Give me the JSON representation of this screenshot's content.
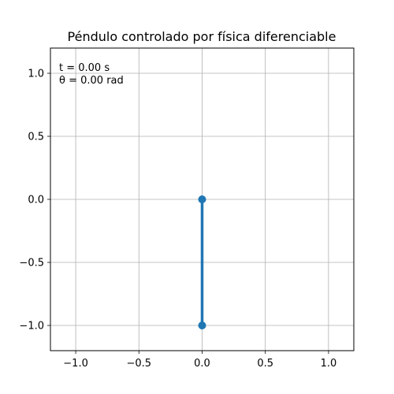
{
  "chart_data": {
    "type": "line",
    "title": "Péndulo controlado por física diferenciable",
    "xlim": [
      -1.2,
      1.2
    ],
    "ylim": [
      -1.2,
      1.2
    ],
    "xticks": [
      -1.0,
      -0.5,
      0.0,
      0.5,
      1.0
    ],
    "xtick_labels": [
      "−1.0",
      "−0.5",
      "0.0",
      "0.5",
      "1.0"
    ],
    "yticks": [
      -1.0,
      -0.5,
      0.0,
      0.5,
      1.0
    ],
    "ytick_labels": [
      "−1.0",
      "−0.5",
      "0.0",
      "0.5",
      "1.0"
    ],
    "grid": true,
    "series": [
      {
        "color": "#1f77b4",
        "x": [
          0.0,
          0.0
        ],
        "y": [
          0.0,
          -1.0
        ],
        "marker": "o"
      }
    ],
    "annotations": [
      "t = 0.00 s",
      "θ = 0.00 rad"
    ]
  }
}
